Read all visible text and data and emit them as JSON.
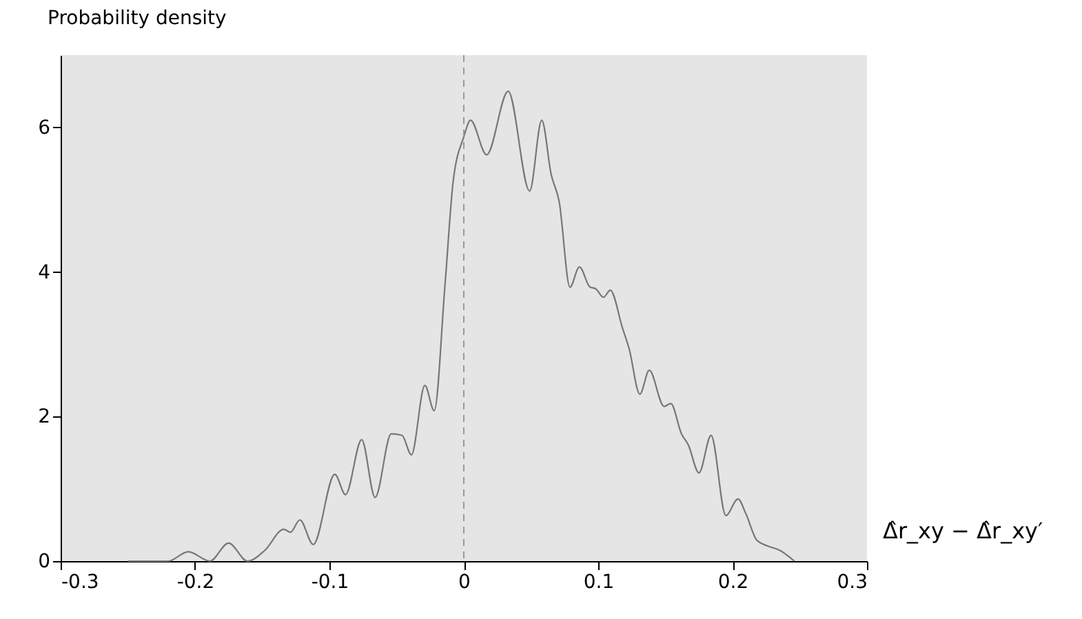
{
  "chart_data": {
    "type": "line",
    "ylabel": "Probability density",
    "xlabel": "Δ̂r_xy − Δ̂r_xy′",
    "xlim": [
      -0.3,
      0.3
    ],
    "xticks": [
      -0.3,
      -0.2,
      -0.1,
      0,
      0.1,
      0.2,
      0.3
    ],
    "ylim": [
      0,
      7
    ],
    "yticks": [
      0,
      2,
      4,
      6
    ],
    "grid": false,
    "marker": "none",
    "line_style": "solid",
    "series": [
      {
        "color": "#777777",
        "x": [
          -0.25,
          -0.22,
          -0.205,
          -0.189,
          -0.175,
          -0.161,
          -0.148,
          -0.134,
          -0.129,
          -0.122,
          -0.112,
          -0.096,
          -0.088,
          -0.076,
          -0.066,
          -0.054,
          -0.046,
          -0.039,
          -0.029,
          -0.022,
          -0.014,
          -0.008,
          0,
          0.005,
          0.017,
          0.033,
          0.049,
          0.058,
          0.065,
          0.071,
          0.079,
          0.086,
          0.094,
          0.098,
          0.104,
          0.109,
          0.118,
          0.123,
          0.131,
          0.138,
          0.149,
          0.154,
          0.162,
          0.167,
          0.175,
          0.184,
          0.195,
          0.204,
          0.21,
          0.218,
          0.226,
          0.235,
          0.246
        ],
        "values": [
          0,
          0,
          0.13,
          0,
          0.25,
          0,
          0.15,
          0.44,
          0.4,
          0.57,
          0.23,
          1.2,
          0.92,
          1.68,
          0.88,
          1.76,
          1.74,
          1.47,
          2.43,
          2.08,
          3.82,
          5.24,
          5.87,
          6.1,
          5.62,
          6.5,
          5.12,
          6.1,
          5.35,
          4.97,
          3.79,
          4.07,
          3.79,
          3.77,
          3.65,
          3.75,
          3.23,
          2.94,
          2.31,
          2.64,
          2.14,
          2.18,
          1.76,
          1.61,
          1.22,
          1.74,
          0.63,
          0.86,
          0.65,
          0.29,
          0.21,
          0.15,
          0
        ]
      }
    ],
    "ref_lines": [
      {
        "axis": "x",
        "value": 0,
        "color": "#999999",
        "line_style": "dashed"
      }
    ]
  }
}
